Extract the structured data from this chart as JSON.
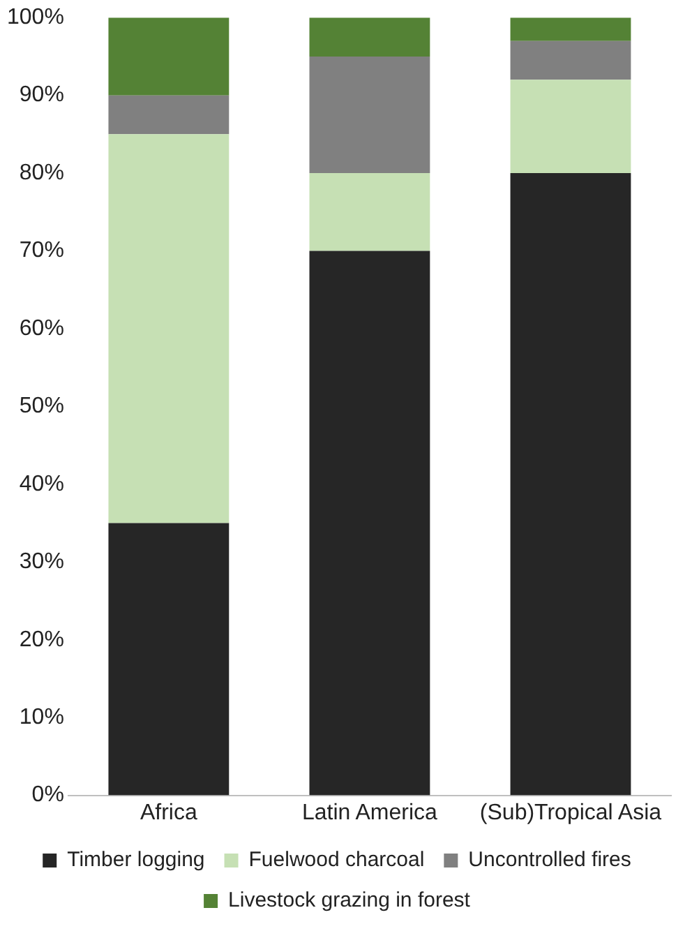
{
  "chart_data": {
    "type": "bar",
    "stacked": true,
    "categories": [
      "Africa",
      "Latin America",
      "(Sub)Tropical Asia"
    ],
    "series": [
      {
        "name": "Timber logging",
        "color": "#262626",
        "values": [
          35,
          70,
          80
        ]
      },
      {
        "name": "Fuelwood charcoal",
        "color": "#c6e0b4",
        "values": [
          50,
          10,
          12
        ]
      },
      {
        "name": "Uncontrolled fires",
        "color": "#808080",
        "values": [
          5,
          15,
          5
        ]
      },
      {
        "name": "Livestock grazing in forest",
        "color": "#548235",
        "values": [
          10,
          5,
          3
        ]
      }
    ],
    "ylim": [
      0,
      100
    ],
    "yticks": [
      {
        "value": 0,
        "label": "0%"
      },
      {
        "value": 10,
        "label": "10%"
      },
      {
        "value": 20,
        "label": "20%"
      },
      {
        "value": 30,
        "label": "30%"
      },
      {
        "value": 40,
        "label": "40%"
      },
      {
        "value": 50,
        "label": "50%"
      },
      {
        "value": 60,
        "label": "60%"
      },
      {
        "value": 70,
        "label": "70%"
      },
      {
        "value": 80,
        "label": "80%"
      },
      {
        "value": 90,
        "label": "90%"
      },
      {
        "value": 100,
        "label": "100%"
      }
    ],
    "grid": false,
    "legend": "bottom"
  }
}
